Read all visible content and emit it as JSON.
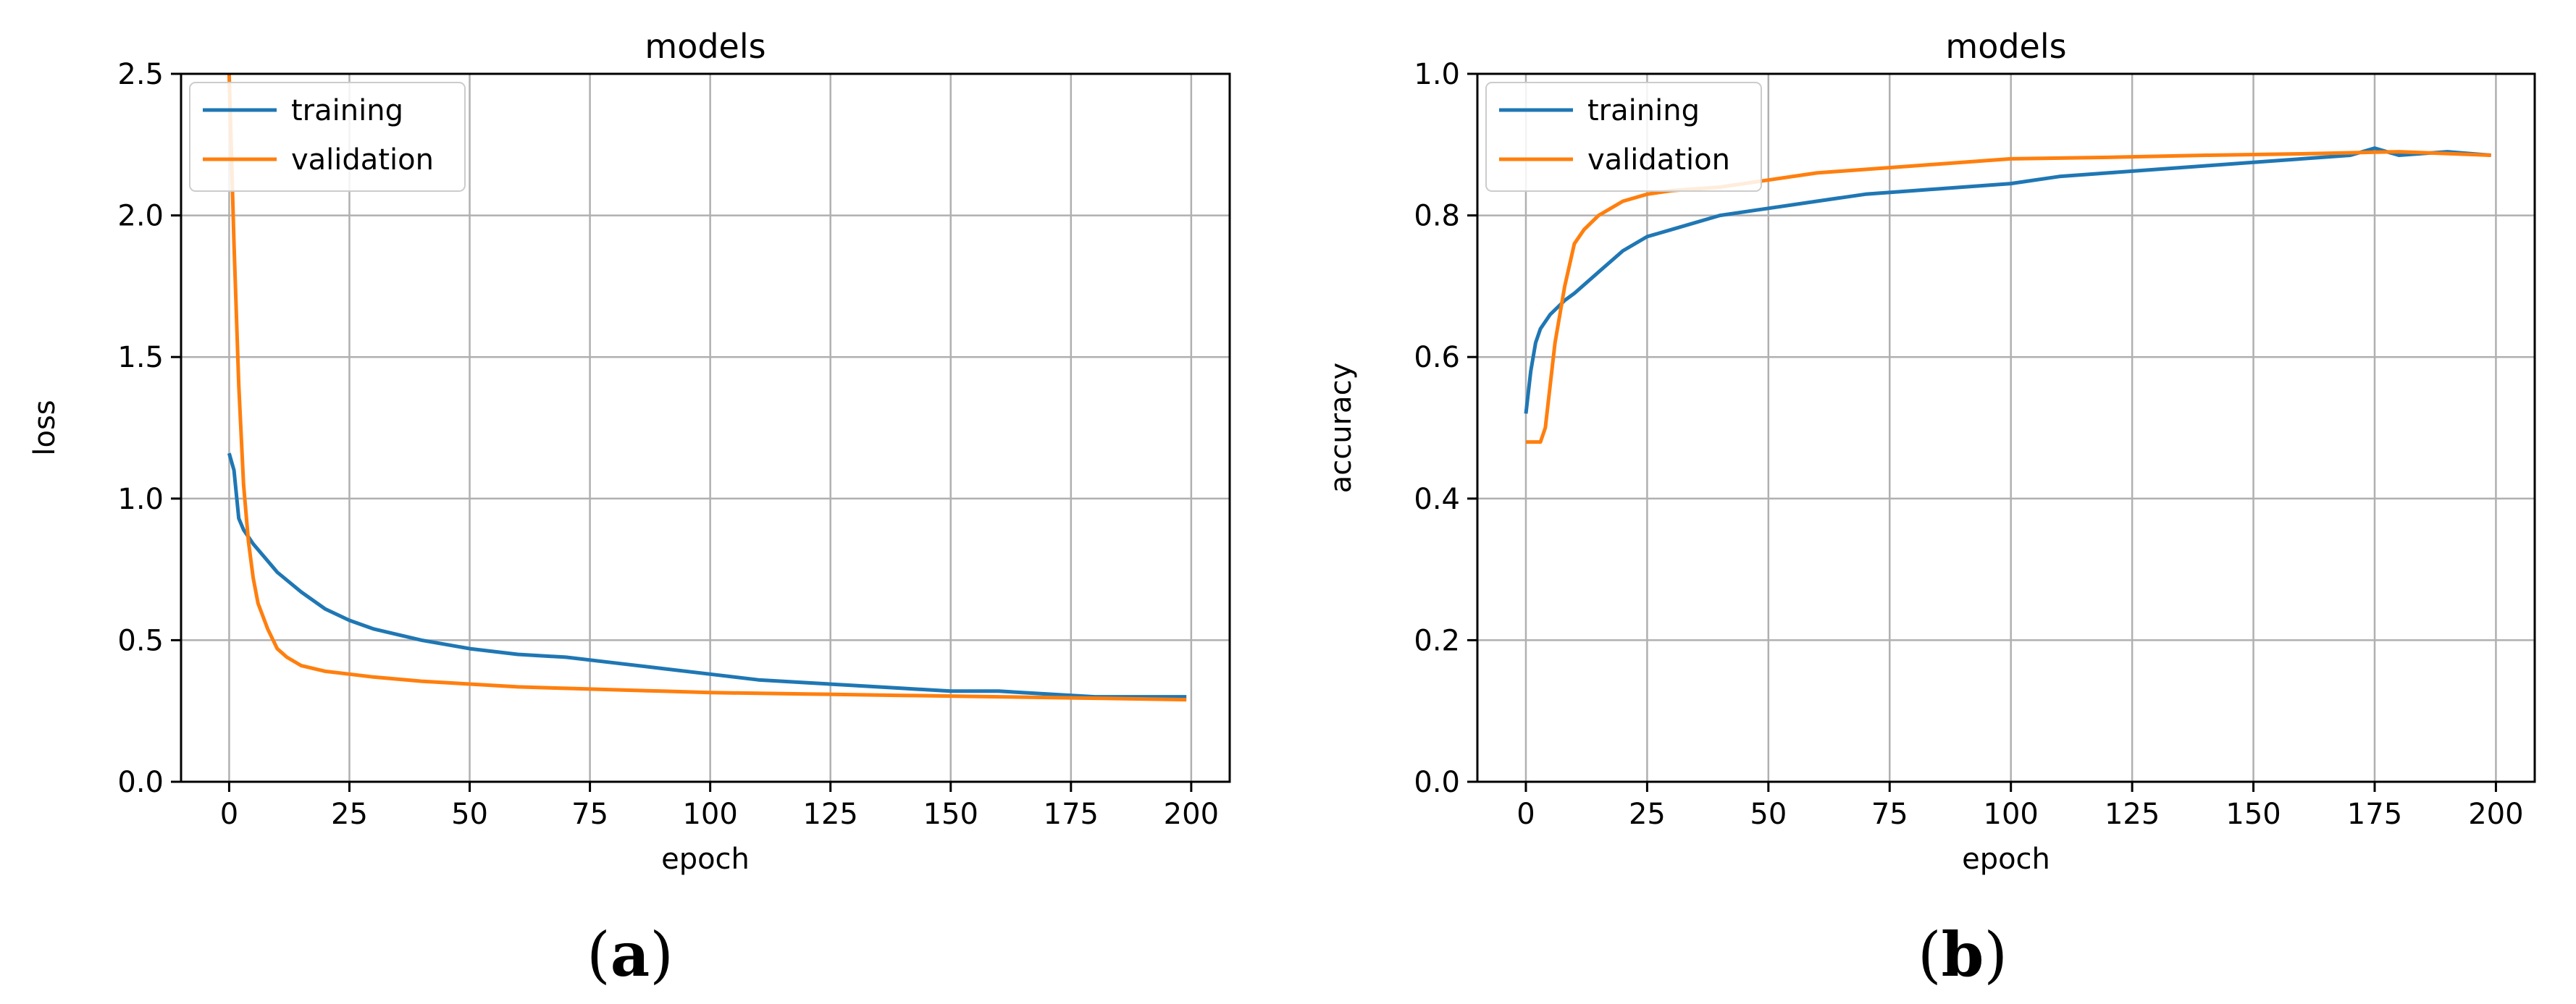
{
  "colors": {
    "training": "#1f77b4",
    "validation": "#ff7f0e",
    "grid": "#b0b0b0"
  },
  "captions": {
    "a": {
      "open": "(",
      "letter": "a",
      "close": ")"
    },
    "b": {
      "open": "(",
      "letter": "b",
      "close": ")"
    }
  },
  "chart_data": [
    {
      "type": "line",
      "title": "models",
      "xlabel": "epoch",
      "ylabel": "loss",
      "xlim": [
        -10,
        208
      ],
      "ylim": [
        0,
        2.5
      ],
      "xticks": [
        0,
        25,
        50,
        75,
        100,
        125,
        150,
        175,
        200
      ],
      "xtick_labels": [
        "0",
        "25",
        "50",
        "75",
        "100",
        "125",
        "150",
        "175",
        "200"
      ],
      "yticks": [
        0,
        0.5,
        1.0,
        1.5,
        2.0,
        2.5
      ],
      "ytick_labels": [
        "0.0",
        "0.5",
        "1.0",
        "1.5",
        "2.0",
        "2.5"
      ],
      "grid": true,
      "legend": "top-left",
      "series": [
        {
          "name": "training",
          "color": "#1f77b4",
          "x": [
            0,
            1,
            2,
            3,
            5,
            8,
            10,
            15,
            20,
            25,
            30,
            40,
            50,
            60,
            70,
            80,
            90,
            100,
            110,
            120,
            130,
            140,
            150,
            160,
            170,
            180,
            190,
            199
          ],
          "y": [
            1.16,
            1.1,
            0.93,
            0.89,
            0.84,
            0.78,
            0.74,
            0.67,
            0.61,
            0.57,
            0.54,
            0.5,
            0.47,
            0.45,
            0.44,
            0.42,
            0.4,
            0.38,
            0.36,
            0.35,
            0.34,
            0.33,
            0.32,
            0.32,
            0.31,
            0.3,
            0.3,
            0.3
          ]
        },
        {
          "name": "validation",
          "color": "#ff7f0e",
          "x": [
            0,
            1,
            2,
            3,
            4,
            5,
            6,
            8,
            10,
            12,
            15,
            20,
            25,
            30,
            40,
            50,
            60,
            70,
            80,
            90,
            100,
            120,
            140,
            160,
            180,
            199
          ],
          "y": [
            2.5,
            1.9,
            1.4,
            1.05,
            0.85,
            0.72,
            0.63,
            0.54,
            0.47,
            0.44,
            0.41,
            0.39,
            0.38,
            0.37,
            0.355,
            0.345,
            0.335,
            0.33,
            0.325,
            0.32,
            0.315,
            0.31,
            0.305,
            0.3,
            0.295,
            0.29
          ]
        }
      ]
    },
    {
      "type": "line",
      "title": "models",
      "xlabel": "epoch",
      "ylabel": "accuracy",
      "xlim": [
        -10,
        208
      ],
      "ylim": [
        0,
        1.0
      ],
      "xticks": [
        0,
        25,
        50,
        75,
        100,
        125,
        150,
        175,
        200
      ],
      "xtick_labels": [
        "0",
        "25",
        "50",
        "75",
        "100",
        "125",
        "150",
        "175",
        "200"
      ],
      "yticks": [
        0,
        0.2,
        0.4,
        0.6,
        0.8,
        1.0
      ],
      "ytick_labels": [
        "0.0",
        "0.2",
        "0.4",
        "0.6",
        "0.8",
        "1.0"
      ],
      "grid": true,
      "legend": "top-left",
      "series": [
        {
          "name": "training",
          "color": "#1f77b4",
          "x": [
            0,
            1,
            2,
            3,
            5,
            8,
            10,
            15,
            20,
            25,
            30,
            40,
            50,
            60,
            70,
            80,
            90,
            100,
            110,
            120,
            130,
            140,
            150,
            160,
            170,
            175,
            180,
            190,
            199
          ],
          "y": [
            0.52,
            0.58,
            0.62,
            0.64,
            0.66,
            0.68,
            0.69,
            0.72,
            0.75,
            0.77,
            0.78,
            0.8,
            0.81,
            0.82,
            0.83,
            0.835,
            0.84,
            0.845,
            0.855,
            0.86,
            0.865,
            0.87,
            0.875,
            0.88,
            0.885,
            0.895,
            0.885,
            0.89,
            0.885
          ]
        },
        {
          "name": "validation",
          "color": "#ff7f0e",
          "x": [
            0,
            1,
            2,
            3,
            4,
            5,
            6,
            7,
            8,
            10,
            12,
            15,
            20,
            25,
            30,
            40,
            50,
            60,
            70,
            80,
            90,
            100,
            120,
            140,
            160,
            180,
            199
          ],
          "y": [
            0.48,
            0.48,
            0.48,
            0.48,
            0.5,
            0.56,
            0.62,
            0.66,
            0.7,
            0.76,
            0.78,
            0.8,
            0.82,
            0.83,
            0.835,
            0.84,
            0.85,
            0.86,
            0.865,
            0.87,
            0.875,
            0.88,
            0.882,
            0.885,
            0.887,
            0.89,
            0.885
          ]
        }
      ]
    }
  ]
}
